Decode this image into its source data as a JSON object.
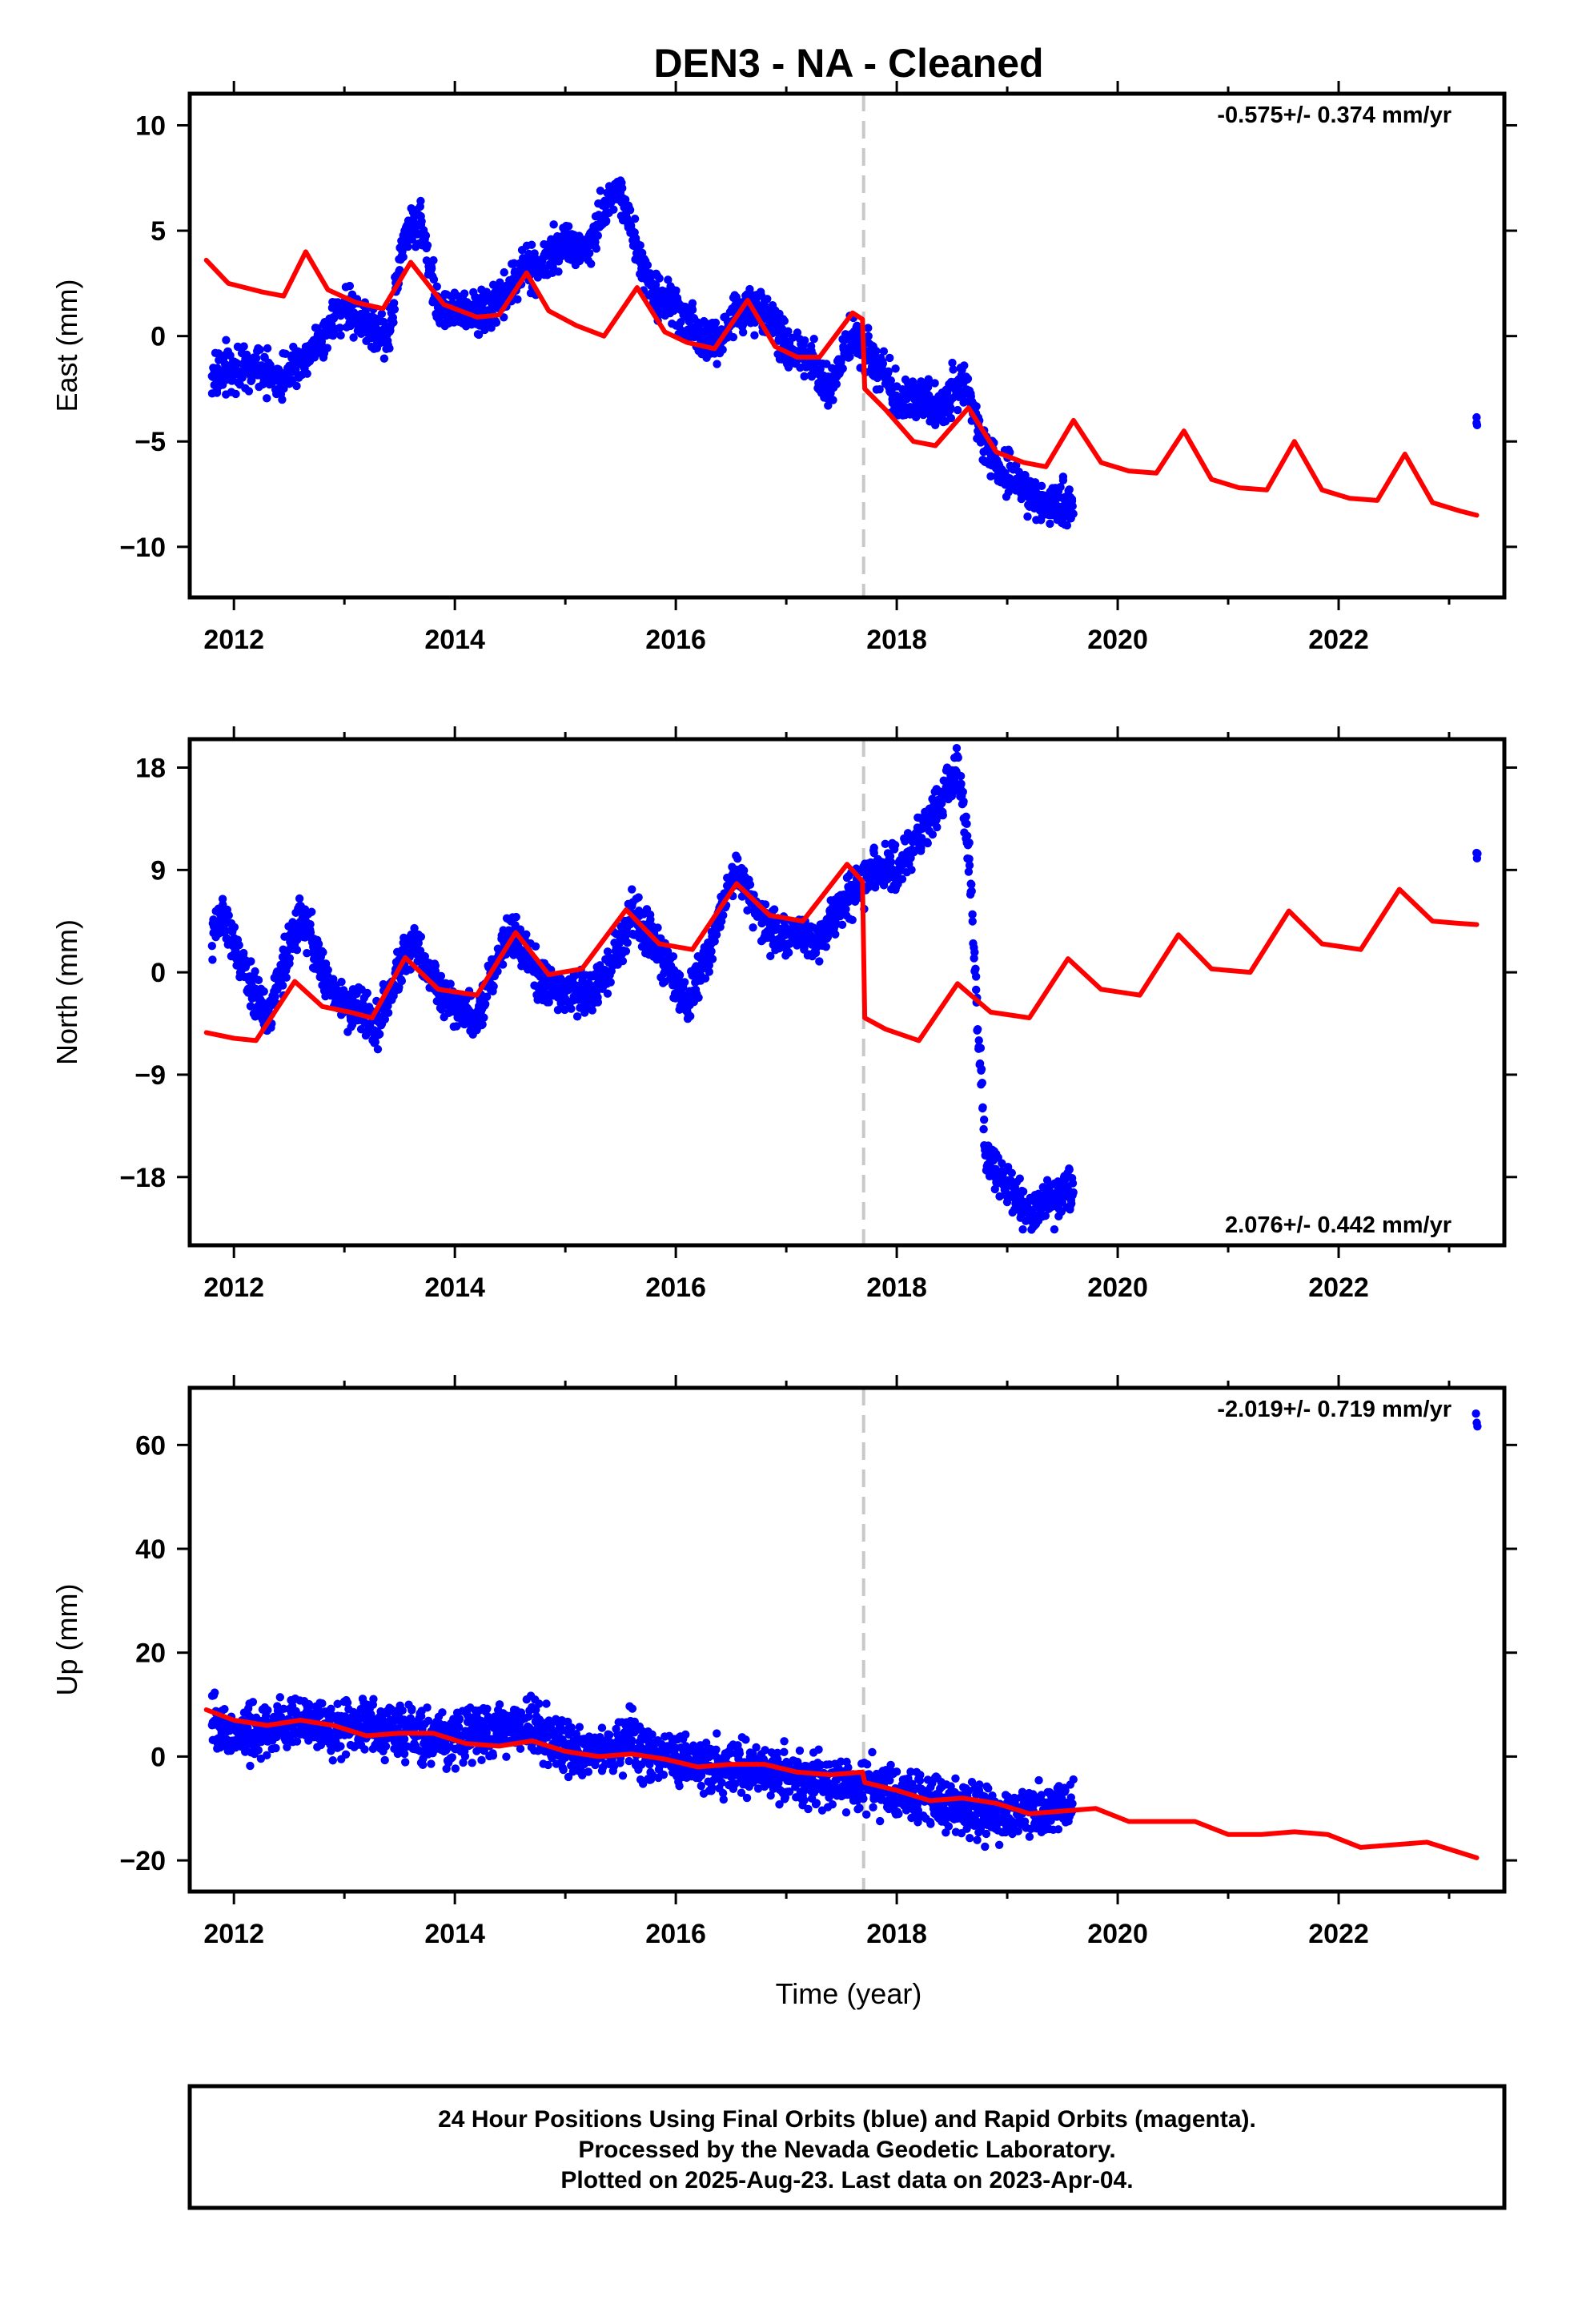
{
  "figure": {
    "title": "DEN3  - NA - Cleaned",
    "xlabel": "Time (year)",
    "footer": [
      "24 Hour Positions Using Final Orbits (blue) and Rapid Orbits (magenta).",
      "Processed by the Nevada Geodetic Laboratory.",
      "Plotted on 2025-Aug-23. Last data on 2023-Apr-04."
    ],
    "colors": {
      "data": "#0000ff",
      "model": "#ff0000",
      "offset": "#c8c8c8",
      "frame": "#000000"
    }
  },
  "chart_data": [
    {
      "type": "scatter",
      "ylabel": "East (mm)",
      "rate_label": "-0.575+/- 0.374 mm/yr",
      "rate_position": "top-right",
      "xlim": [
        2011.6,
        2023.5
      ],
      "ylim": [
        -12.4,
        11.5
      ],
      "yticks": [
        -10,
        -5,
        0,
        5,
        10
      ],
      "xticks": [
        2012,
        2014,
        2016,
        2018,
        2020,
        2022
      ],
      "offset_epoch": 2017.7,
      "grid": false,
      "series": [
        {
          "kind": "observations",
          "x": [
            2011.8,
            2012.0,
            2012.2,
            2012.4,
            2012.6,
            2012.8,
            2013.0,
            2013.2,
            2013.4,
            2013.55,
            2013.7,
            2013.85,
            2014.0,
            2014.2,
            2014.4,
            2014.6,
            2014.8,
            2015.0,
            2015.2,
            2015.4,
            2015.5,
            2015.6,
            2015.8,
            2016.0,
            2016.2,
            2016.4,
            2016.6,
            2016.8,
            2017.0,
            2017.2,
            2017.4,
            2017.6,
            2017.8,
            2018.0,
            2018.2,
            2018.4,
            2018.6,
            2018.8,
            2019.0,
            2019.2,
            2019.4,
            2019.6,
            2023.25
          ],
          "y": [
            -2,
            -1.5,
            -1.5,
            -2,
            -1.2,
            0,
            1.5,
            0.5,
            0,
            5,
            5.5,
            1,
            1.5,
            1,
            1.5,
            3,
            3.5,
            4.5,
            4,
            6.5,
            7,
            5,
            2,
            1.5,
            0,
            0,
            1.5,
            1,
            -0.5,
            -1,
            -2.5,
            0,
            -1,
            -3,
            -3,
            -3.5,
            -2,
            -5.5,
            -6.5,
            -7.5,
            -8,
            -8,
            -4.5
          ]
        },
        {
          "kind": "model",
          "x": [
            2011.75,
            2011.95,
            2012.25,
            2012.45,
            2012.65,
            2012.85,
            2013.1,
            2013.35,
            2013.6,
            2013.9,
            2014.2,
            2014.4,
            2014.65,
            2014.85,
            2015.1,
            2015.35,
            2015.65,
            2015.9,
            2016.1,
            2016.35,
            2016.65,
            2016.9,
            2017.1,
            2017.3,
            2017.6,
            2017.69,
            2017.71,
            2017.9,
            2018.15,
            2018.35,
            2018.65,
            2018.9,
            2019.15,
            2019.35,
            2019.6,
            2019.85,
            2020.1,
            2020.35,
            2020.6,
            2020.85,
            2021.1,
            2021.35,
            2021.6,
            2021.85,
            2022.1,
            2022.35,
            2022.6,
            2022.85,
            2023.1,
            2023.25
          ],
          "y": [
            3.6,
            2.5,
            2.1,
            1.9,
            4,
            2.2,
            1.6,
            1.3,
            3.5,
            1.5,
            0.9,
            1,
            3,
            1.2,
            0.5,
            0,
            2.3,
            0.2,
            -0.3,
            -0.6,
            1.7,
            -0.5,
            -1,
            -1,
            1.1,
            0.8,
            -2.5,
            -3.5,
            -5,
            -5.2,
            -3.4,
            -5.5,
            -6,
            -6.2,
            -4,
            -6,
            -6.4,
            -6.5,
            -4.5,
            -6.8,
            -7.2,
            -7.3,
            -5,
            -7.3,
            -7.7,
            -7.8,
            -5.6,
            -7.9,
            -8.3,
            -8.5
          ]
        }
      ]
    },
    {
      "type": "scatter",
      "ylabel": "North (mm)",
      "rate_label": "2.076+/- 0.442 mm/yr",
      "rate_position": "bottom-right",
      "xlim": [
        2011.6,
        2023.5
      ],
      "ylim": [
        -24,
        20.5
      ],
      "yticks": [
        -18,
        -9,
        0,
        9,
        18
      ],
      "xticks": [
        2012,
        2014,
        2016,
        2018,
        2020,
        2022
      ],
      "offset_epoch": 2017.7,
      "grid": false,
      "series": [
        {
          "kind": "observations",
          "x": [
            2011.8,
            2011.9,
            2012.1,
            2012.3,
            2012.6,
            2012.9,
            2013.1,
            2013.3,
            2013.6,
            2013.9,
            2014.2,
            2014.5,
            2014.8,
            2015.1,
            2015.4,
            2015.6,
            2015.9,
            2016.1,
            2016.3,
            2016.55,
            2016.8,
            2017.0,
            2017.3,
            2017.6,
            2017.8,
            2018.0,
            2018.2,
            2018.4,
            2018.55,
            2018.65,
            2018.8,
            2019.0,
            2019.2,
            2019.4,
            2019.6,
            2023.25
          ],
          "y": [
            3,
            5,
            0,
            -4,
            5,
            -2,
            -3,
            -5,
            3,
            -2,
            -4,
            4,
            -1,
            -2,
            0,
            5,
            1,
            -3,
            2,
            9,
            4,
            3,
            3,
            7,
            9,
            9,
            12,
            15,
            18,
            11,
            -16,
            -19,
            -21,
            -20,
            -19,
            10
          ]
        },
        {
          "kind": "model",
          "x": [
            2011.75,
            2012.0,
            2012.2,
            2012.55,
            2012.8,
            2013.05,
            2013.25,
            2013.55,
            2013.85,
            2014.2,
            2014.55,
            2014.85,
            2015.15,
            2015.55,
            2015.85,
            2016.15,
            2016.55,
            2016.85,
            2017.15,
            2017.55,
            2017.69,
            2017.71,
            2017.9,
            2018.2,
            2018.55,
            2018.85,
            2019.2,
            2019.55,
            2019.85,
            2020.2,
            2020.55,
            2020.85,
            2021.2,
            2021.55,
            2021.85,
            2022.2,
            2022.55,
            2022.85,
            2023.1,
            2023.25
          ],
          "y": [
            -5.3,
            -5.8,
            -6,
            -0.8,
            -3,
            -3.5,
            -4,
            1.3,
            -1.5,
            -2,
            3.5,
            -0.2,
            0.3,
            5.5,
            2.5,
            2,
            7.8,
            5,
            4.5,
            9.5,
            8,
            -4,
            -5,
            -6,
            -1,
            -3.5,
            -4,
            1.2,
            -1.5,
            -2,
            3.3,
            0.3,
            0,
            5.4,
            2.5,
            2,
            7.3,
            4.5,
            4.3,
            4.2
          ]
        }
      ]
    },
    {
      "type": "scatter",
      "ylabel": "Up (mm)",
      "rate_label": "-2.019+/- 0.719 mm/yr",
      "rate_position": "top-right",
      "xlim": [
        2011.6,
        2023.5
      ],
      "ylim": [
        -26,
        71
      ],
      "yticks": [
        -20,
        0,
        20,
        40,
        60
      ],
      "xticks": [
        2012,
        2014,
        2016,
        2018,
        2020,
        2022
      ],
      "offset_epoch": 2017.7,
      "grid": false,
      "series": [
        {
          "kind": "observations",
          "x": [
            2011.8,
            2012.0,
            2012.3,
            2012.6,
            2012.9,
            2013.2,
            2013.5,
            2013.8,
            2014.1,
            2014.4,
            2014.7,
            2015.0,
            2015.3,
            2015.6,
            2015.9,
            2016.2,
            2016.5,
            2016.8,
            2017.1,
            2017.4,
            2017.8,
            2018.1,
            2018.4,
            2018.7,
            2019.0,
            2019.3,
            2019.6,
            2023.25
          ],
          "y": [
            6,
            4,
            5,
            7,
            5,
            6,
            5,
            3,
            4,
            5,
            6,
            2,
            1,
            3,
            0,
            -2,
            -3,
            -3,
            -4,
            -5,
            -6,
            -8,
            -9,
            -10,
            -11,
            -11,
            -9,
            65
          ]
        },
        {
          "kind": "model",
          "x": [
            2011.75,
            2012.0,
            2012.3,
            2012.6,
            2012.9,
            2013.2,
            2013.5,
            2013.8,
            2014.1,
            2014.4,
            2014.7,
            2015.0,
            2015.3,
            2015.6,
            2015.9,
            2016.2,
            2016.5,
            2016.8,
            2017.1,
            2017.4,
            2017.69,
            2017.71,
            2018.0,
            2018.3,
            2018.6,
            2018.9,
            2019.2,
            2019.5,
            2019.8,
            2020.1,
            2020.4,
            2020.7,
            2021.0,
            2021.3,
            2021.6,
            2021.9,
            2022.2,
            2022.5,
            2022.8,
            2023.1,
            2023.25
          ],
          "y": [
            9,
            7,
            6,
            7,
            6,
            4,
            4.5,
            4.5,
            2.5,
            2,
            3,
            1,
            0,
            0.5,
            -0.5,
            -2,
            -1.5,
            -1.5,
            -3,
            -3.5,
            -3,
            -5,
            -6.5,
            -8.5,
            -8,
            -9,
            -11,
            -10.5,
            -10,
            -12.5,
            -12.5,
            -12.5,
            -15,
            -15,
            -14.5,
            -15,
            -17.5,
            -17,
            -16.5,
            -18.5,
            -19.5
          ]
        }
      ]
    }
  ]
}
